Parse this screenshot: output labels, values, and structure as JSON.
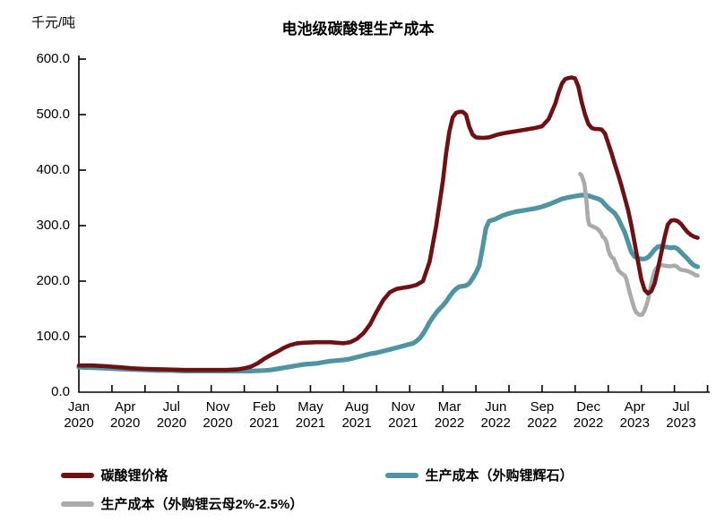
{
  "chart_data": {
    "type": "line",
    "title": "电池级碳酸锂生产成本",
    "unit_label": "千元/吨",
    "grid": false,
    "legend_position": "bottom",
    "ylim": [
      0,
      600
    ],
    "ytick_step": 100,
    "ytick_labels": [
      "600.0",
      "500.0",
      "400.0",
      "300.0",
      "200.0",
      "100.0",
      "0.0"
    ],
    "x_unit": "weeks since Jan 2020",
    "xlim": [
      0,
      190
    ],
    "x_minor_tick_interval": 10,
    "xtick_labels": [
      {
        "month": "Jan",
        "year": "2020",
        "week": 0
      },
      {
        "month": "Apr",
        "year": "2020",
        "week": 14
      },
      {
        "month": "Jul",
        "year": "2020",
        "week": 28
      },
      {
        "month": "Nov",
        "year": "2020",
        "week": 42
      },
      {
        "month": "Feb",
        "year": "2021",
        "week": 56
      },
      {
        "month": "May",
        "year": "2021",
        "week": 70
      },
      {
        "month": "Aug",
        "year": "2021",
        "week": 84
      },
      {
        "month": "Nov",
        "year": "2021",
        "week": 98
      },
      {
        "month": "Mar",
        "year": "2022",
        "week": 112
      },
      {
        "month": "Jun",
        "year": "2022",
        "week": 126
      },
      {
        "month": "Sep",
        "year": "2022",
        "week": 140
      },
      {
        "month": "Dec",
        "year": "2022",
        "week": 154
      },
      {
        "month": "Apr",
        "year": "2023",
        "week": 168
      },
      {
        "month": "Jul",
        "year": "2023",
        "week": 182
      }
    ],
    "axis_color": "#000000",
    "series": [
      {
        "name": "碳酸锂价格",
        "color": "#6e1113",
        "points": [
          [
            0,
            48
          ],
          [
            4,
            48
          ],
          [
            8,
            47
          ],
          [
            12,
            45
          ],
          [
            16,
            43
          ],
          [
            20,
            42
          ],
          [
            26,
            41
          ],
          [
            32,
            40
          ],
          [
            38,
            40
          ],
          [
            44,
            40
          ],
          [
            48,
            41
          ],
          [
            50,
            43
          ],
          [
            52,
            46
          ],
          [
            54,
            52
          ],
          [
            56,
            60
          ],
          [
            58,
            67
          ],
          [
            60,
            73
          ],
          [
            62,
            80
          ],
          [
            64,
            85
          ],
          [
            66,
            88
          ],
          [
            68,
            89
          ],
          [
            72,
            90
          ],
          [
            76,
            90
          ],
          [
            80,
            88
          ],
          [
            82,
            90
          ],
          [
            84,
            96
          ],
          [
            86,
            106
          ],
          [
            88,
            122
          ],
          [
            90,
            145
          ],
          [
            92,
            166
          ],
          [
            94,
            180
          ],
          [
            96,
            186
          ],
          [
            98,
            188
          ],
          [
            100,
            190
          ],
          [
            102,
            193
          ],
          [
            104,
            200
          ],
          [
            106,
            235
          ],
          [
            108,
            300
          ],
          [
            110,
            380
          ],
          [
            111,
            430
          ],
          [
            112,
            470
          ],
          [
            113,
            495
          ],
          [
            114,
            503
          ],
          [
            115,
            505
          ],
          [
            116,
            505
          ],
          [
            117,
            500
          ],
          [
            118,
            478
          ],
          [
            119,
            464
          ],
          [
            120,
            459
          ],
          [
            122,
            458
          ],
          [
            124,
            459
          ],
          [
            126,
            463
          ],
          [
            128,
            466
          ],
          [
            130,
            468
          ],
          [
            132,
            470
          ],
          [
            134,
            472
          ],
          [
            136,
            474
          ],
          [
            138,
            476
          ],
          [
            140,
            479
          ],
          [
            142,
            492
          ],
          [
            144,
            520
          ],
          [
            145,
            540
          ],
          [
            146,
            556
          ],
          [
            147,
            564
          ],
          [
            148,
            566
          ],
          [
            149,
            567
          ],
          [
            150,
            565
          ],
          [
            151,
            550
          ],
          [
            152,
            522
          ],
          [
            153,
            500
          ],
          [
            154,
            483
          ],
          [
            155,
            476
          ],
          [
            156,
            474
          ],
          [
            157,
            474
          ],
          [
            158,
            473
          ],
          [
            159,
            466
          ],
          [
            160,
            448
          ],
          [
            161,
            430
          ],
          [
            162,
            410
          ],
          [
            163,
            392
          ],
          [
            164,
            372
          ],
          [
            165,
            350
          ],
          [
            166,
            328
          ],
          [
            167,
            300
          ],
          [
            168,
            268
          ],
          [
            169,
            235
          ],
          [
            170,
            203
          ],
          [
            171,
            184
          ],
          [
            172,
            178
          ],
          [
            173,
            182
          ],
          [
            174,
            196
          ],
          [
            175,
            222
          ],
          [
            176,
            250
          ],
          [
            177,
            278
          ],
          [
            178,
            302
          ],
          [
            179,
            309
          ],
          [
            180,
            310
          ],
          [
            181,
            308
          ],
          [
            182,
            303
          ],
          [
            183,
            295
          ],
          [
            184,
            288
          ],
          [
            185,
            283
          ],
          [
            186,
            280
          ],
          [
            187,
            278
          ]
        ]
      },
      {
        "name": "生产成本（外购锂辉石）",
        "color": "#4e94a2",
        "points": [
          [
            0,
            45
          ],
          [
            4,
            44
          ],
          [
            8,
            43
          ],
          [
            12,
            42
          ],
          [
            16,
            41
          ],
          [
            20,
            40
          ],
          [
            24,
            39
          ],
          [
            28,
            39
          ],
          [
            32,
            38
          ],
          [
            36,
            38
          ],
          [
            40,
            38
          ],
          [
            44,
            38
          ],
          [
            48,
            38
          ],
          [
            52,
            38
          ],
          [
            56,
            39
          ],
          [
            58,
            40
          ],
          [
            60,
            42
          ],
          [
            62,
            44
          ],
          [
            64,
            46
          ],
          [
            66,
            48
          ],
          [
            68,
            50
          ],
          [
            70,
            51
          ],
          [
            72,
            52
          ],
          [
            74,
            54
          ],
          [
            76,
            56
          ],
          [
            78,
            57
          ],
          [
            80,
            58
          ],
          [
            82,
            60
          ],
          [
            84,
            63
          ],
          [
            86,
            66
          ],
          [
            88,
            69
          ],
          [
            90,
            71
          ],
          [
            92,
            74
          ],
          [
            94,
            77
          ],
          [
            96,
            80
          ],
          [
            101,
            88
          ],
          [
            102,
            92
          ],
          [
            103,
            97
          ],
          [
            104,
            105
          ],
          [
            105,
            115
          ],
          [
            106,
            126
          ],
          [
            107,
            135
          ],
          [
            108,
            143
          ],
          [
            109,
            150
          ],
          [
            110,
            156
          ],
          [
            111,
            163
          ],
          [
            112,
            172
          ],
          [
            113,
            180
          ],
          [
            114,
            186
          ],
          [
            115,
            190
          ],
          [
            116,
            191
          ],
          [
            117,
            192
          ],
          [
            118,
            196
          ],
          [
            119,
            205
          ],
          [
            120,
            215
          ],
          [
            121,
            228
          ],
          [
            122,
            260
          ],
          [
            123,
            295
          ],
          [
            124,
            308
          ],
          [
            125,
            310
          ],
          [
            126,
            312
          ],
          [
            127,
            315
          ],
          [
            128,
            318
          ],
          [
            129,
            320
          ],
          [
            130,
            322
          ],
          [
            132,
            325
          ],
          [
            134,
            327
          ],
          [
            136,
            329
          ],
          [
            138,
            331
          ],
          [
            140,
            334
          ],
          [
            142,
            338
          ],
          [
            144,
            343
          ],
          [
            146,
            348
          ],
          [
            148,
            351
          ],
          [
            150,
            353
          ],
          [
            152,
            355
          ],
          [
            154,
            354
          ],
          [
            155,
            352
          ],
          [
            156,
            350
          ],
          [
            157,
            348
          ],
          [
            158,
            345
          ],
          [
            159,
            338
          ],
          [
            160,
            332
          ],
          [
            161,
            327
          ],
          [
            162,
            322
          ],
          [
            163,
            313
          ],
          [
            164,
            300
          ],
          [
            165,
            288
          ],
          [
            166,
            270
          ],
          [
            167,
            252
          ],
          [
            168,
            244
          ],
          [
            169,
            241
          ],
          [
            170,
            240
          ],
          [
            171,
            240
          ],
          [
            172,
            243
          ],
          [
            173,
            249
          ],
          [
            174,
            257
          ],
          [
            175,
            262
          ],
          [
            176,
            263
          ],
          [
            177,
            262
          ],
          [
            178,
            261
          ],
          [
            179,
            260
          ],
          [
            180,
            261
          ],
          [
            181,
            258
          ],
          [
            182,
            252
          ],
          [
            183,
            246
          ],
          [
            184,
            240
          ],
          [
            185,
            233
          ],
          [
            186,
            228
          ],
          [
            187,
            226
          ]
        ]
      },
      {
        "name": "生产成本（外购锂云母2%-2.5%）",
        "color": "#ababab",
        "points": [
          [
            151.5,
            393
          ],
          [
            152,
            390
          ],
          [
            152.8,
            375
          ],
          [
            153.4,
            345
          ],
          [
            153.8,
            315
          ],
          [
            154.2,
            302
          ],
          [
            155,
            299
          ],
          [
            156,
            297
          ],
          [
            157,
            293
          ],
          [
            157.8,
            287
          ],
          [
            158.3,
            280
          ],
          [
            159,
            277
          ],
          [
            159.5,
            270
          ],
          [
            160,
            256
          ],
          [
            160.6,
            247
          ],
          [
            161,
            243
          ],
          [
            161.6,
            241
          ],
          [
            162,
            235
          ],
          [
            162.6,
            226
          ],
          [
            163,
            220
          ],
          [
            164,
            214
          ],
          [
            165,
            210
          ],
          [
            165.5,
            203
          ],
          [
            166,
            191
          ],
          [
            166.6,
            177
          ],
          [
            167.2,
            164
          ],
          [
            167.8,
            152
          ],
          [
            168.4,
            144
          ],
          [
            169,
            141
          ],
          [
            169.6,
            139
          ],
          [
            170.3,
            140
          ],
          [
            170.9,
            146
          ],
          [
            171.5,
            156
          ],
          [
            172,
            166
          ],
          [
            172.5,
            180
          ],
          [
            173,
            196
          ],
          [
            173.5,
            208
          ],
          [
            174,
            218
          ],
          [
            174.6,
            224
          ],
          [
            175.2,
            228
          ],
          [
            176,
            229
          ],
          [
            177,
            228
          ],
          [
            178,
            227
          ],
          [
            179,
            227
          ],
          [
            180,
            228
          ],
          [
            180.8,
            226
          ],
          [
            181.5,
            222
          ],
          [
            182.3,
            220
          ],
          [
            183.5,
            219
          ],
          [
            184.5,
            217
          ],
          [
            185.5,
            214
          ],
          [
            186.3,
            211
          ],
          [
            187,
            210
          ]
        ]
      }
    ]
  }
}
